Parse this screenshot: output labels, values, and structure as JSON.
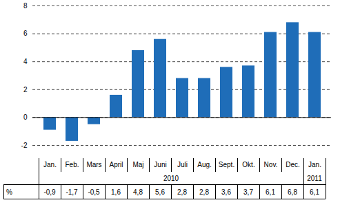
{
  "chart_data": {
    "type": "bar",
    "categories": [
      "Jan.",
      "Feb.",
      "Mars",
      "April",
      "Maj",
      "Juni",
      "Juli",
      "Aug.",
      "Sept.",
      "Okt.",
      "Nov.",
      "Dec.",
      "Jan."
    ],
    "values": [
      -0.9,
      -1.7,
      -0.5,
      1.6,
      4.8,
      5.6,
      2.8,
      2.8,
      3.6,
      3.7,
      6.1,
      6.8,
      6.1
    ],
    "value_labels": [
      "-0,9",
      "-1,7",
      "-0,5",
      "1,6",
      "4,8",
      "5,6",
      "2,8",
      "2,8",
      "3,6",
      "3,7",
      "6,1",
      "6,8",
      "6,1"
    ],
    "data_labels": true,
    "data_label_title": "%",
    "x_groups": [
      {
        "label": "2010",
        "count": 12
      },
      {
        "label": "2011",
        "count": 1
      }
    ],
    "color": "#1f6db8",
    "ylim": [
      -2,
      8
    ],
    "yticks": [
      -2,
      0,
      2,
      4,
      6,
      8
    ],
    "grid": true
  }
}
